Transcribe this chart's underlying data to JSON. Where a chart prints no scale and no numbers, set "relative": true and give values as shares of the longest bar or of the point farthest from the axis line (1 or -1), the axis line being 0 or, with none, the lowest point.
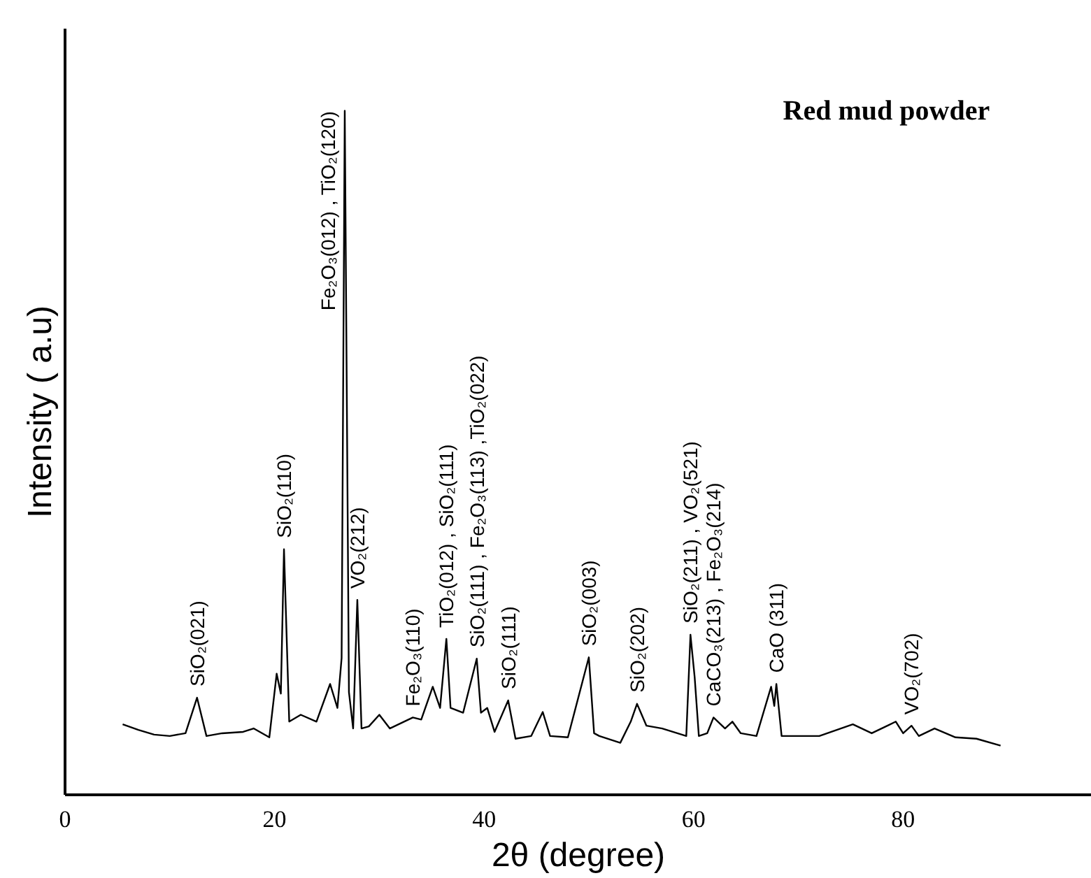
{
  "chart_data": {
    "type": "line",
    "title": "Red mud powder",
    "xlabel": "2θ (degree)",
    "ylabel": "Intensity ( a.u)",
    "relative": true,
    "xlim": [
      0,
      98
    ],
    "xticks": [
      0,
      20,
      40,
      60,
      80
    ],
    "tick_labels": "x",
    "grid": false,
    "marker": "none",
    "line_style": "solid",
    "series": [
      {
        "color": "#000000",
        "x": [
          5.5,
          7,
          8.5,
          10,
          11.5,
          12.6,
          13.5,
          15,
          17,
          18,
          19.5,
          20.2,
          20.6,
          20.9,
          21.4,
          22.5,
          24,
          25.3,
          26,
          26.4,
          26.7,
          27.1,
          27.5,
          27.9,
          28.3,
          29,
          30,
          31,
          33.2,
          34,
          35.1,
          35.8,
          36.4,
          36.8,
          38,
          39.3,
          39.7,
          40.3,
          41,
          42.3,
          43,
          44.5,
          45.6,
          46.3,
          48,
          50,
          50.5,
          51,
          53,
          54,
          54.6,
          55.5,
          57,
          59.3,
          59.7,
          60.1,
          60.5,
          61.3,
          61.9,
          63,
          63.7,
          64.5,
          66,
          67.4,
          67.7,
          67.9,
          68.4,
          70,
          72,
          75.2,
          77,
          79.3,
          80,
          80.8,
          81.5,
          83,
          85,
          87,
          89.3
        ],
        "values": [
          0.103,
          0.095,
          0.088,
          0.086,
          0.09,
          0.142,
          0.086,
          0.09,
          0.092,
          0.097,
          0.084,
          0.177,
          0.148,
          0.359,
          0.107,
          0.117,
          0.107,
          0.162,
          0.127,
          0.2,
          1.0,
          0.15,
          0.097,
          0.285,
          0.097,
          0.1,
          0.117,
          0.097,
          0.113,
          0.11,
          0.158,
          0.127,
          0.228,
          0.127,
          0.12,
          0.199,
          0.12,
          0.127,
          0.092,
          0.138,
          0.082,
          0.086,
          0.121,
          0.086,
          0.084,
          0.201,
          0.09,
          0.086,
          0.076,
          0.107,
          0.133,
          0.101,
          0.097,
          0.086,
          0.234,
          0.172,
          0.086,
          0.09,
          0.113,
          0.097,
          0.107,
          0.09,
          0.086,
          0.158,
          0.13,
          0.162,
          0.086,
          0.086,
          0.086,
          0.103,
          0.09,
          0.107,
          0.09,
          0.101,
          0.086,
          0.097,
          0.084,
          0.082,
          0.072
        ]
      }
    ],
    "annotations": [
      {
        "text": "SiO₂(021)",
        "x": 12.6,
        "y": 0.142
      },
      {
        "text": "SiO₂(110)",
        "x": 20.9,
        "y": 0.359
      },
      {
        "text": "Fe₂O₃(012) , TiO₂(120)",
        "x": 26.7,
        "y": 1.0
      },
      {
        "text": "VO₂(212)",
        "x": 27.9,
        "y": 0.285
      },
      {
        "text": "Fe₂O₃(110)",
        "x": 33.2,
        "y": 0.113
      },
      {
        "text": "TiO₂(012) , SiO₂(111)",
        "x": 36.4,
        "y": 0.228
      },
      {
        "text": "SiO₂(111) , Fe₂O₃(113) ,TiO₂(022)",
        "x": 39.3,
        "y": 0.199
      },
      {
        "text": "SiO₂(111)",
        "x": 42.3,
        "y": 0.138
      },
      {
        "text": "SiO₂(003)",
        "x": 50.0,
        "y": 0.201
      },
      {
        "text": "SiO₂(202)",
        "x": 54.6,
        "y": 0.133
      },
      {
        "text": "SiO₂(211) , VO₂(521)",
        "x": 59.7,
        "y": 0.234
      },
      {
        "text": "CaCO₃(213) , Fe₂O₃(214)",
        "x": 61.9,
        "y": 0.113
      },
      {
        "text": "CaO (311)",
        "x": 67.9,
        "y": 0.162
      },
      {
        "text": "VO₂(702)",
        "x": 80.8,
        "y": 0.101
      }
    ]
  }
}
